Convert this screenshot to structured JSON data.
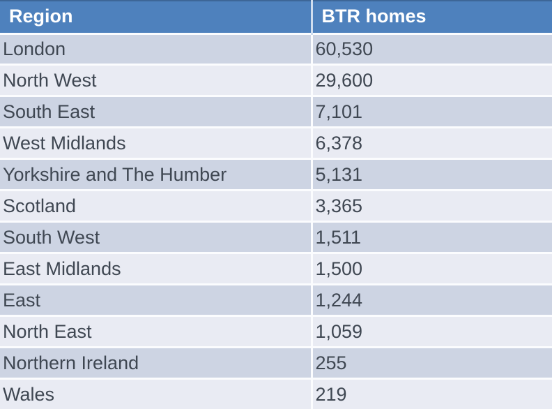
{
  "table": {
    "columns": [
      {
        "label": "Region"
      },
      {
        "label": "BTR homes"
      }
    ],
    "rows": [
      {
        "region": "London",
        "value": "60,530"
      },
      {
        "region": "North West",
        "value": "29,600"
      },
      {
        "region": "South East",
        "value": "7,101"
      },
      {
        "region": "West Midlands",
        "value": "6,378"
      },
      {
        "region": "Yorkshire and The Humber",
        "value": "5,131"
      },
      {
        "region": "Scotland",
        "value": "3,365"
      },
      {
        "region": "South West",
        "value": "1,511"
      },
      {
        "region": "East Midlands",
        "value": "1,500"
      },
      {
        "region": "East",
        "value": "1,244"
      },
      {
        "region": "North East",
        "value": "1,059"
      },
      {
        "region": "Northern Ireland",
        "value": "255"
      },
      {
        "region": "Wales",
        "value": "219"
      }
    ]
  },
  "colors": {
    "header_bg": "#4E81BD",
    "header_text": "#FFFFFF",
    "header_top_border": "#3D6697",
    "row_odd_bg": "#CDD4E3",
    "row_even_bg": "#E9EBF3",
    "body_text": "#3F4752",
    "divider": "#FBFCFE"
  },
  "chart_data": {
    "type": "table",
    "columns": [
      "Region",
      "BTR homes"
    ],
    "categories": [
      "London",
      "North West",
      "South East",
      "West Midlands",
      "Yorkshire and The Humber",
      "Scotland",
      "South West",
      "East Midlands",
      "East",
      "North East",
      "Northern Ireland",
      "Wales"
    ],
    "values": [
      60530,
      29600,
      7101,
      6378,
      5131,
      3365,
      1511,
      1500,
      1244,
      1059,
      255,
      219
    ]
  }
}
